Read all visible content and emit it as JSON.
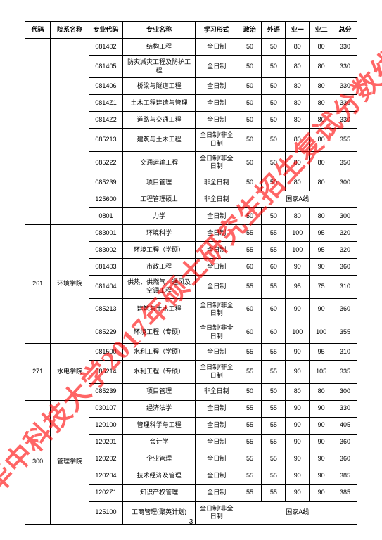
{
  "watermark_text": "华中科技大学2017年硕士研究生招生复试分数线",
  "watermark_color": "#ff0000",
  "page_number": "3",
  "headers": [
    "代码",
    "院系名称",
    "专业代码",
    "专业名称",
    "学习形式",
    "政治",
    "外语",
    "业一",
    "业二",
    "总分"
  ],
  "groups": [
    {
      "code": "",
      "dept": "",
      "rows": [
        {
          "mc": "081402",
          "mn": "结构工程",
          "form": "全日制",
          "s1": "50",
          "s2": "50",
          "s3": "80",
          "s4": "80",
          "tot": "330"
        },
        {
          "mc": "081405",
          "mn": "防灾减灾工程及防护工程",
          "form": "全日制",
          "s1": "50",
          "s2": "50",
          "s3": "80",
          "s4": "80",
          "tot": "330"
        },
        {
          "mc": "081406",
          "mn": "桥梁与隧道工程",
          "form": "全日制",
          "s1": "50",
          "s2": "50",
          "s3": "80",
          "s4": "80",
          "tot": "330"
        },
        {
          "mc": "0814Z1",
          "mn": "土木工程建造与管理",
          "form": "全日制",
          "s1": "50",
          "s2": "50",
          "s3": "80",
          "s4": "80",
          "tot": "330"
        },
        {
          "mc": "0814Z2",
          "mn": "道路与交通工程",
          "form": "全日制",
          "s1": "50",
          "s2": "50",
          "s3": "80",
          "s4": "80",
          "tot": "330"
        },
        {
          "mc": "085213",
          "mn": "建筑与土木工程",
          "form": "全日制/非全日制",
          "s1": "50",
          "s2": "50",
          "s3": "80",
          "s4": "80",
          "tot": "355"
        },
        {
          "mc": "085222",
          "mn": "交通运输工程",
          "form": "全日制/非全日制",
          "s1": "50",
          "s2": "50",
          "s3": "80",
          "s4": "80",
          "tot": "350"
        },
        {
          "mc": "085239",
          "mn": "项目管理",
          "form": "非全日制",
          "s1": "50",
          "s2": "50",
          "s3": "80",
          "s4": "80",
          "tot": "300"
        },
        {
          "mc": "125600",
          "mn": "工程管理硕士",
          "form": "非全日制",
          "merged": "国家A线"
        },
        {
          "mc": "0801",
          "mn": "力学",
          "form": "全日制",
          "s1": "50",
          "s2": "50",
          "s3": "80",
          "s4": "80",
          "tot": "300"
        }
      ]
    },
    {
      "code": "261",
      "dept": "环境学院",
      "rows": [
        {
          "mc": "083001",
          "mn": "环境科学",
          "form": "全日制",
          "s1": "55",
          "s2": "55",
          "s3": "100",
          "s4": "95",
          "tot": "320"
        },
        {
          "mc": "083002",
          "mn": "环境工程（学硕）",
          "form": "全日制",
          "s1": "55",
          "s2": "55",
          "s3": "100",
          "s4": "95",
          "tot": "320"
        },
        {
          "mc": "081403",
          "mn": "市政工程",
          "form": "全日制",
          "s1": "60",
          "s2": "60",
          "s3": "90",
          "s4": "90",
          "tot": "360"
        },
        {
          "mc": "081404",
          "mn": "供热、供燃气、通风及空调工程",
          "form": "全日制",
          "s1": "55",
          "s2": "55",
          "s3": "95",
          "s4": "75",
          "tot": "310"
        },
        {
          "mc": "085213",
          "mn": "建筑与土木工程",
          "form": "全日制/非全日制",
          "s1": "60",
          "s2": "60",
          "s3": "90",
          "s4": "90",
          "tot": "360"
        },
        {
          "mc": "085229",
          "mn": "环境工程（专硕）",
          "form": "全日制/非全日制",
          "s1": "60",
          "s2": "60",
          "s3": "100",
          "s4": "100",
          "tot": "355"
        }
      ]
    },
    {
      "code": "271",
      "dept": "水电学院",
      "rows": [
        {
          "mc": "081500",
          "mn": "水利工程（学硕）",
          "form": "全日制",
          "s1": "55",
          "s2": "55",
          "s3": "90",
          "s4": "95",
          "tot": "310"
        },
        {
          "mc": "085214",
          "mn": "水利工程（专硕）",
          "form": "全日制/非全日制",
          "s1": "55",
          "s2": "55",
          "s3": "90",
          "s4": "105",
          "tot": "335"
        },
        {
          "mc": "085239",
          "mn": "项目管理",
          "form": "非全日制",
          "s1": "50",
          "s2": "50",
          "s3": "80",
          "s4": "80",
          "tot": "300"
        }
      ]
    },
    {
      "code": "300",
      "dept": "管理学院",
      "rows": [
        {
          "mc": "030107",
          "mn": "经济法学",
          "form": "全日制",
          "s1": "55",
          "s2": "55",
          "s3": "90",
          "s4": "90",
          "tot": "330"
        },
        {
          "mc": "120100",
          "mn": "管理科学与工程",
          "form": "全日制",
          "s1": "55",
          "s2": "55",
          "s3": "90",
          "s4": "90",
          "tot": "405"
        },
        {
          "mc": "120201",
          "mn": "会计学",
          "form": "全日制",
          "s1": "55",
          "s2": "55",
          "s3": "90",
          "s4": "90",
          "tot": "360"
        },
        {
          "mc": "120202",
          "mn": "企业管理",
          "form": "全日制",
          "s1": "55",
          "s2": "55",
          "s3": "90",
          "s4": "90",
          "tot": "360"
        },
        {
          "mc": "120204",
          "mn": "技术经济及管理",
          "form": "全日制",
          "s1": "55",
          "s2": "55",
          "s3": "90",
          "s4": "90",
          "tot": "385"
        },
        {
          "mc": "1202Z1",
          "mn": "知识产权管理",
          "form": "全日制",
          "s1": "55",
          "s2": "55",
          "s3": "90",
          "s4": "90",
          "tot": "385"
        },
        {
          "mc": "125100",
          "mn": "工商管理(聚英计划)",
          "form": "全日制/非全日制",
          "merged": "国家A线"
        }
      ]
    }
  ]
}
